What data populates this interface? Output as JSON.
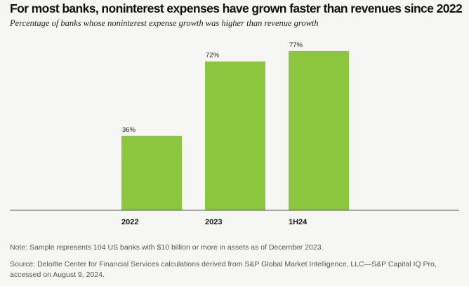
{
  "title": "For most banks, noninterest expenses have grown faster than revenues since 2022",
  "subtitle": "Percentage of banks whose noninterest expense growth was higher than revenue growth",
  "note": "Note: Sample represents 104 US banks with $10 billion or more in assets as of December 2023.",
  "source": "Source: Deloitte Center for Financial Services calculations derived from S&P Global Market Intelligence, LLC—S&P Capital IQ Pro, accessed on August 9, 2024.",
  "colors": {
    "bar": "#8cc63f",
    "axis": "#555555",
    "background": "#f6f6f4"
  },
  "chart_data": {
    "type": "bar",
    "categories": [
      "2022",
      "2023",
      "1H24"
    ],
    "values": [
      36,
      72,
      77
    ],
    "value_labels": [
      "36%",
      "72%",
      "77%"
    ],
    "ylim": [
      0,
      100
    ],
    "grid": false,
    "legend": "none"
  }
}
